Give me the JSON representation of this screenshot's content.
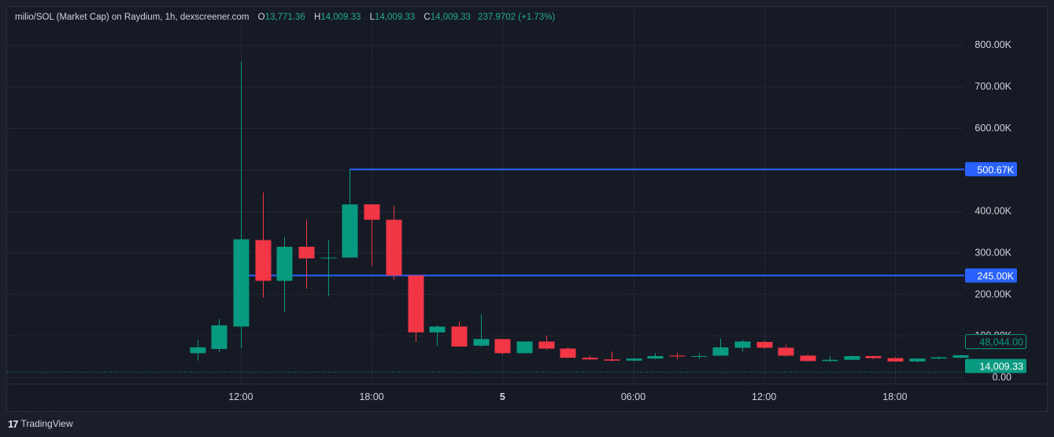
{
  "legend": {
    "symbol": "milio/SOL (Market Cap) on Raydium, 1h, dexscreener.com",
    "o_label": "O",
    "o_value": "13,771.36",
    "h_label": "H",
    "h_value": "14,009.33",
    "l_label": "L",
    "l_value": "14,009.33",
    "c_label": "C",
    "c_value": "14,009.33",
    "change": "237.9702 (+1.73%)"
  },
  "footer": {
    "brand": "TradingView",
    "logo_glyph": "17"
  },
  "colors": {
    "up": "#089981",
    "down": "#f23645",
    "hline": "#2962ff",
    "grid": "#232735",
    "text": "#d1d4dc"
  },
  "chart_data": {
    "type": "candlestick",
    "y_ticks": [
      {
        "v": 800000,
        "label": "800.00K"
      },
      {
        "v": 700000,
        "label": "700.00K"
      },
      {
        "v": 600000,
        "label": "600.00K"
      },
      {
        "v": 500000,
        "label": "500.00K"
      },
      {
        "v": 400000,
        "label": "400.00K"
      },
      {
        "v": 300000,
        "label": "300.00K"
      },
      {
        "v": 200000,
        "label": "200.00K"
      },
      {
        "v": 100000,
        "label": "100.00K"
      },
      {
        "v": 0,
        "label": "0.00"
      }
    ],
    "x_ticks": [
      {
        "i": 2,
        "label": "12:00",
        "bold": false
      },
      {
        "i": 8,
        "label": "18:00",
        "bold": false
      },
      {
        "i": 14,
        "label": "5",
        "bold": true
      },
      {
        "i": 20,
        "label": "06:00",
        "bold": false
      },
      {
        "i": 26,
        "label": "12:00",
        "bold": false
      },
      {
        "i": 32,
        "label": "18:00",
        "bold": false
      }
    ],
    "candles": [
      {
        "o": 58000,
        "h": 90000,
        "l": 40000,
        "c": 72000
      },
      {
        "o": 68000,
        "h": 140000,
        "l": 60000,
        "c": 125000
      },
      {
        "o": 122000,
        "h": 760000,
        "l": 70000,
        "c": 332000
      },
      {
        "o": 330000,
        "h": 445000,
        "l": 192000,
        "c": 232000
      },
      {
        "o": 232000,
        "h": 338000,
        "l": 158000,
        "c": 314000
      },
      {
        "o": 314000,
        "h": 380000,
        "l": 213000,
        "c": 286000
      },
      {
        "o": 287000,
        "h": 330000,
        "l": 195000,
        "c": 288000
      },
      {
        "o": 288000,
        "h": 500670,
        "l": 288000,
        "c": 416000
      },
      {
        "o": 416000,
        "h": 416000,
        "l": 268000,
        "c": 379000
      },
      {
        "o": 379000,
        "h": 413000,
        "l": 235000,
        "c": 245000
      },
      {
        "o": 245000,
        "h": 245000,
        "l": 85000,
        "c": 108000
      },
      {
        "o": 108000,
        "h": 125000,
        "l": 75000,
        "c": 122000
      },
      {
        "o": 122000,
        "h": 134000,
        "l": 74000,
        "c": 74000
      },
      {
        "o": 76000,
        "h": 152000,
        "l": 73000,
        "c": 92000
      },
      {
        "o": 92000,
        "h": 92000,
        "l": 55000,
        "c": 58000
      },
      {
        "o": 58000,
        "h": 87000,
        "l": 58000,
        "c": 86000
      },
      {
        "o": 86000,
        "h": 100000,
        "l": 66000,
        "c": 69000
      },
      {
        "o": 69000,
        "h": 73000,
        "l": 46000,
        "c": 47000
      },
      {
        "o": 47000,
        "h": 52000,
        "l": 41000,
        "c": 43000
      },
      {
        "o": 43000,
        "h": 62000,
        "l": 38000,
        "c": 40000
      },
      {
        "o": 40000,
        "h": 47000,
        "l": 38000,
        "c": 45000
      },
      {
        "o": 45000,
        "h": 58000,
        "l": 44000,
        "c": 51000
      },
      {
        "o": 52000,
        "h": 59000,
        "l": 44000,
        "c": 50000
      },
      {
        "o": 50000,
        "h": 58000,
        "l": 44000,
        "c": 51000
      },
      {
        "o": 52000,
        "h": 93000,
        "l": 52000,
        "c": 72000
      },
      {
        "o": 71000,
        "h": 90000,
        "l": 62000,
        "c": 86000
      },
      {
        "o": 85000,
        "h": 88000,
        "l": 69000,
        "c": 71000
      },
      {
        "o": 71000,
        "h": 78000,
        "l": 50000,
        "c": 52000
      },
      {
        "o": 52000,
        "h": 55000,
        "l": 38000,
        "c": 39000
      },
      {
        "o": 39000,
        "h": 51000,
        "l": 37000,
        "c": 42000
      },
      {
        "o": 42000,
        "h": 52000,
        "l": 42000,
        "c": 51000
      },
      {
        "o": 51000,
        "h": 52000,
        "l": 44000,
        "c": 46000
      },
      {
        "o": 46000,
        "h": 49000,
        "l": 37000,
        "c": 38000
      },
      {
        "o": 38000,
        "h": 46000,
        "l": 36000,
        "c": 45000
      },
      {
        "o": 45000,
        "h": 50000,
        "l": 44000,
        "c": 48000
      },
      {
        "o": 47000,
        "h": 54000,
        "l": 46000,
        "c": 53000
      }
    ],
    "hlines": [
      {
        "v": 500670,
        "label": "500.67K",
        "start_i": 7
      },
      {
        "v": 245000,
        "label": "245.00K",
        "start_i": 2
      }
    ],
    "price_labels": [
      {
        "v": 48044,
        "label": "48,044.00",
        "style": "outline"
      },
      {
        "v": 14009.33,
        "label": "14,009.33",
        "style": "filled"
      }
    ],
    "last_price": 14009.33
  }
}
